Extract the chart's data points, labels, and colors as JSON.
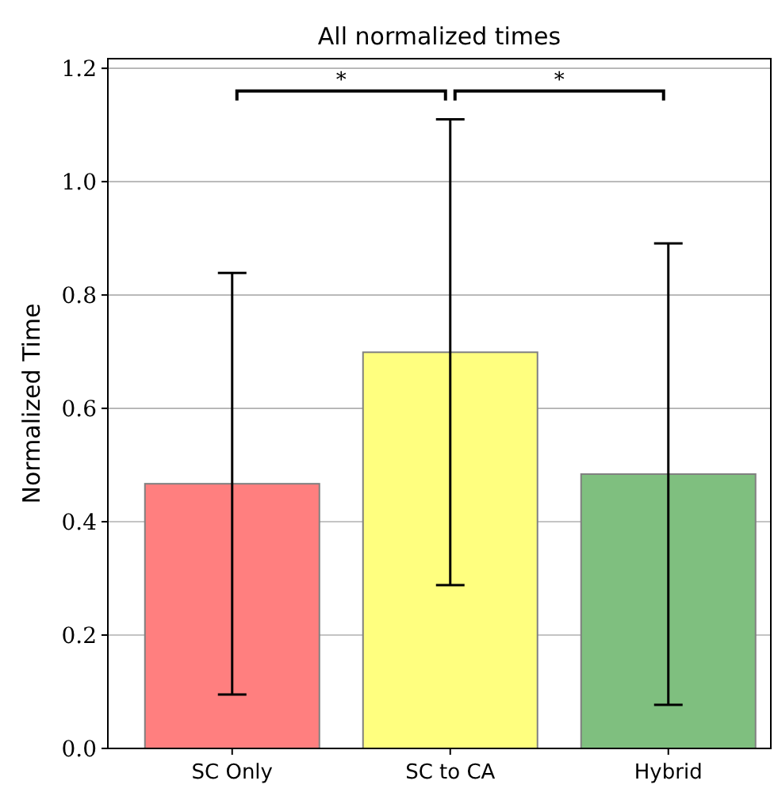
{
  "chart_data": {
    "type": "bar",
    "title": "All normalized times",
    "ylabel": "Normalized Time",
    "categories": [
      "SC Only",
      "SC to CA",
      "Hybrid"
    ],
    "values": [
      0.467,
      0.699,
      0.484
    ],
    "errors": [
      0.372,
      0.411,
      0.407
    ],
    "colors": [
      "#ff7f7f",
      "#ffff7f",
      "#7fbf7f"
    ],
    "ylim": [
      0,
      1.217
    ],
    "yticks": [
      {
        "value": 0,
        "label": "0.0"
      },
      {
        "value": 0.2,
        "label": "0.2"
      },
      {
        "value": 0.4,
        "label": "0.4"
      },
      {
        "value": 0.6,
        "label": "0.6"
      },
      {
        "value": 0.8,
        "label": "0.8"
      },
      {
        "value": 1.0,
        "label": "1.0"
      },
      {
        "value": 1.2,
        "label": "1.2"
      }
    ],
    "grid": "y",
    "annotations": [
      "*",
      "*"
    ]
  }
}
